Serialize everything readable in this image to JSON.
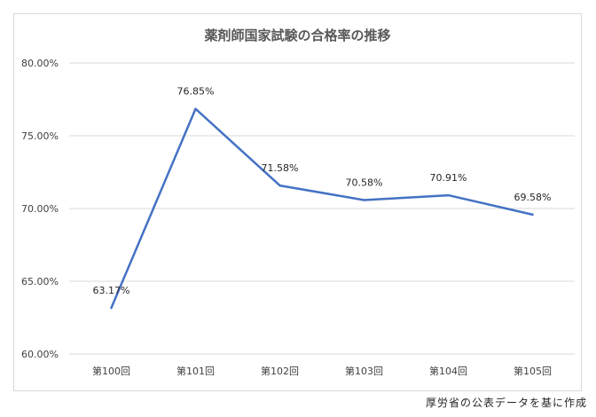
{
  "chart_data": {
    "type": "line",
    "title": "薬剤師国家試験の合格率の推移",
    "categories": [
      "第100回",
      "第101回",
      "第102回",
      "第103回",
      "第104回",
      "第105回"
    ],
    "series": [
      {
        "values": [
          63.17,
          76.85,
          71.58,
          70.58,
          70.91,
          69.58
        ],
        "data_labels": [
          "63.17%",
          "76.85%",
          "71.58%",
          "70.58%",
          "70.91%",
          "69.58%"
        ],
        "color": "#4472c4"
      }
    ],
    "ylim": [
      60,
      80
    ],
    "yticks": [
      "60.00%",
      "65.00%",
      "70.00%",
      "75.00%",
      "80.00%"
    ],
    "ytick_values": [
      60,
      65,
      70,
      75,
      80
    ],
    "grid": true,
    "gridline_color": "#d9d9d9",
    "xlabel": "",
    "ylabel": ""
  },
  "source_note": "厚労省の公表データを基に作成"
}
